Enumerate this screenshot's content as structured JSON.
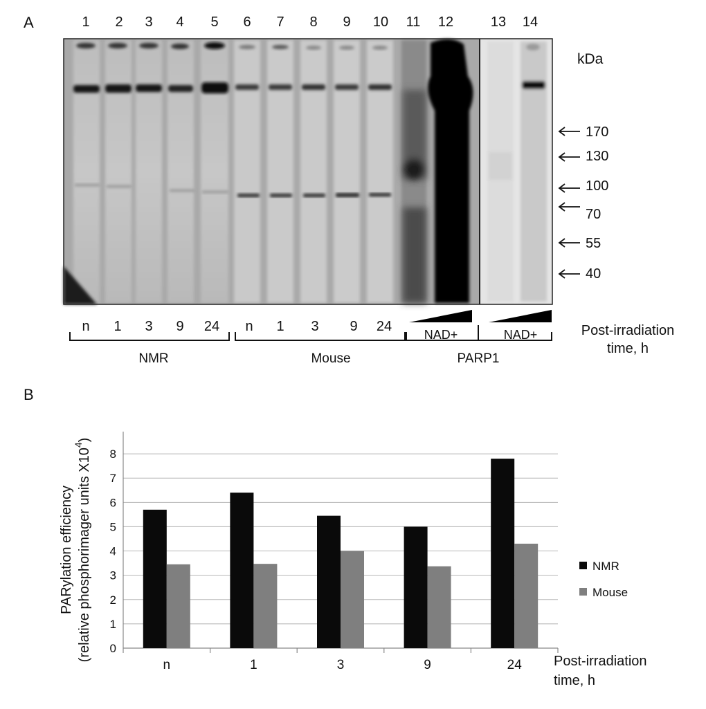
{
  "panel_a": {
    "label": "A",
    "lane_numbers": [
      "1",
      "2",
      "3",
      "4",
      "5",
      "6",
      "7",
      "8",
      "9",
      "10",
      "11",
      "12",
      "13",
      "14"
    ],
    "kda_label": "kDa",
    "markers": [
      "170",
      "130",
      "100",
      "70",
      "55",
      "40"
    ],
    "time_labels": [
      "n",
      "1",
      "3",
      "9",
      "24",
      "n",
      "1",
      "3",
      "9",
      "24"
    ],
    "nad_labels": [
      "NAD+",
      "NAD+"
    ],
    "group_labels": [
      "NMR",
      "Mouse",
      "PARP1"
    ],
    "post_irradiation_label": [
      "Post-irradiation",
      "time, h"
    ]
  },
  "panel_b": {
    "label": "B",
    "x_title_lines": [
      "Post-irradiation",
      "time, h"
    ],
    "y_title_lines": [
      "PARylation efficiency",
      "(relative phosphorimager units X10",
      ")"
    ],
    "y_superscript": "4",
    "y_ticks": [
      "0",
      "1",
      "2",
      "3",
      "4",
      "5",
      "6",
      "7",
      "8"
    ],
    "legend": [
      "NMR",
      "Mouse"
    ]
  },
  "chart_data": {
    "type": "bar",
    "categories": [
      "n",
      "1",
      "3",
      "9",
      "24"
    ],
    "series": [
      {
        "name": "NMR",
        "color": "#0a0a0a",
        "values": [
          5.7,
          6.4,
          5.45,
          5.0,
          7.8
        ]
      },
      {
        "name": "Mouse",
        "color": "#7f7f7f",
        "values": [
          3.45,
          3.47,
          4.0,
          3.37,
          4.3
        ]
      }
    ],
    "ylim": [
      0,
      8.8
    ],
    "ytick_step": 1,
    "grid": true,
    "legend_position": "right"
  }
}
